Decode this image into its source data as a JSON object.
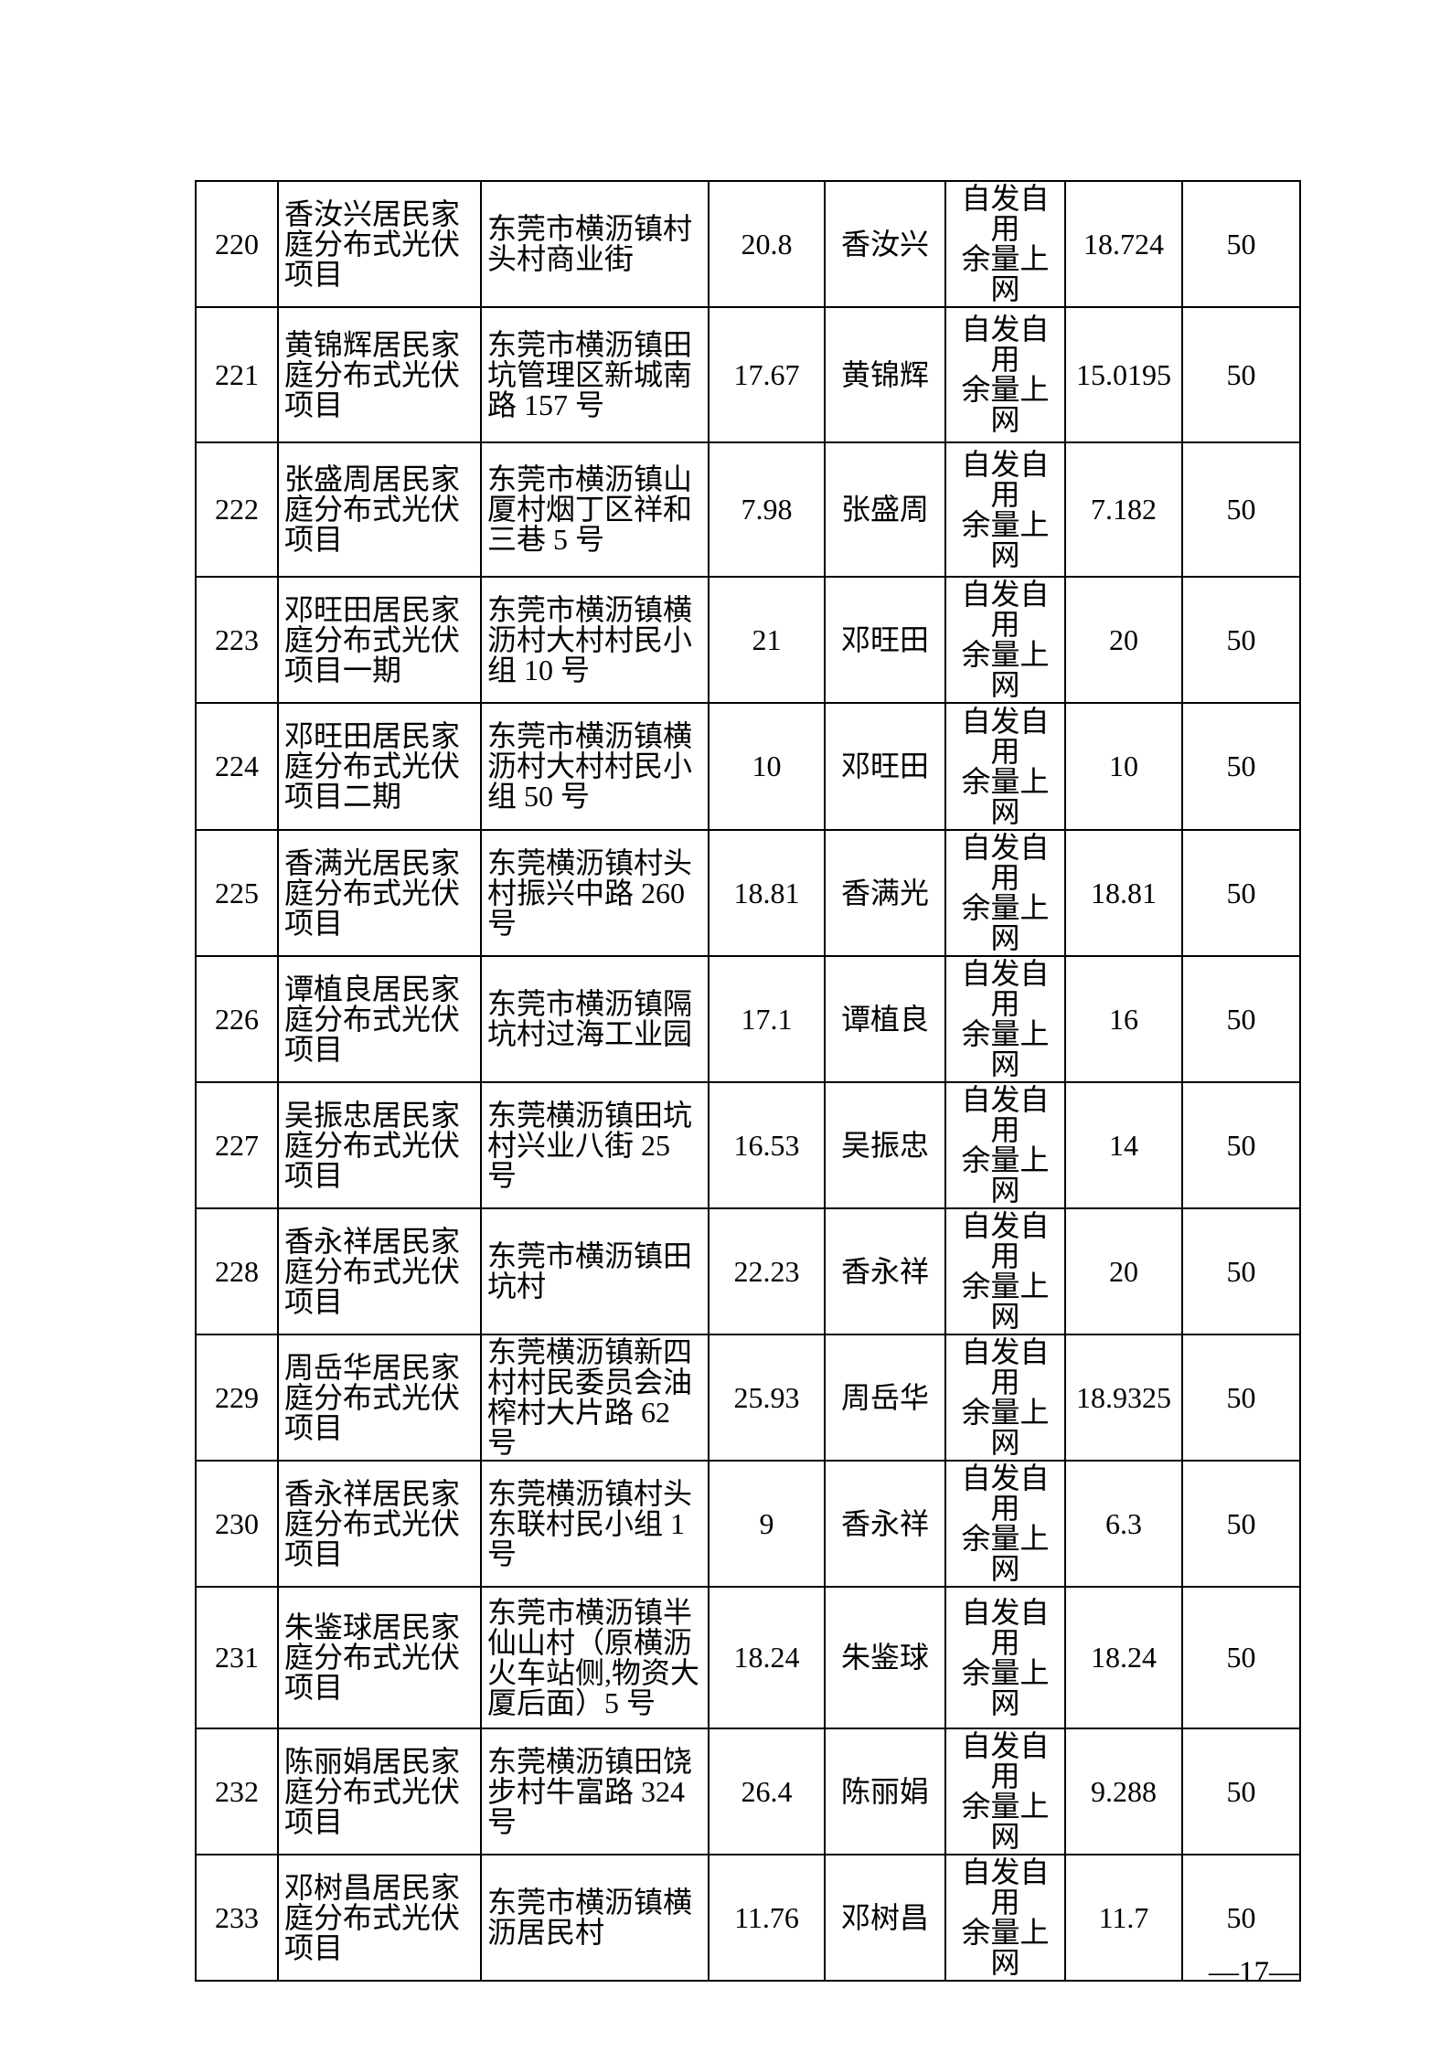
{
  "page": {
    "footer_label": "—17—"
  },
  "table": {
    "rows": [
      {
        "no": "220",
        "name": "香汝兴居民家庭分布式光伏项目",
        "address": "东莞市横沥镇村头村商业街",
        "capacity": "20.8",
        "owner": "香汝兴",
        "mode": [
          "自发自用",
          "余量上网"
        ],
        "value": "18.724",
        "quota": "50"
      },
      {
        "no": "221",
        "name": "黄锦辉居民家庭分布式光伏项目",
        "address": "东莞市横沥镇田坑管理区新城南路 157 号",
        "capacity": "17.67",
        "owner": "黄锦辉",
        "mode": [
          "自发自用",
          "余量上网"
        ],
        "value": "15.0195",
        "quota": "50"
      },
      {
        "no": "222",
        "name": "张盛周居民家庭分布式光伏项目",
        "address": "东莞市横沥镇山厦村烟丁区祥和三巷 5 号",
        "capacity": "7.98",
        "owner": "张盛周",
        "mode": [
          "自发自用",
          "余量上网"
        ],
        "value": "7.182",
        "quota": "50"
      },
      {
        "no": "223",
        "name": "邓旺田居民家庭分布式光伏项目一期",
        "address": "东莞市横沥镇横沥村大村村民小组 10 号",
        "capacity": "21",
        "owner": "邓旺田",
        "mode": [
          "自发自用",
          "余量上网"
        ],
        "value": "20",
        "quota": "50"
      },
      {
        "no": "224",
        "name": "邓旺田居民家庭分布式光伏项目二期",
        "address": "东莞市横沥镇横沥村大村村民小组 50 号",
        "capacity": "10",
        "owner": "邓旺田",
        "mode": [
          "自发自用",
          "余量上网"
        ],
        "value": "10",
        "quota": "50"
      },
      {
        "no": "225",
        "name": "香满光居民家庭分布式光伏项目",
        "address": "东莞横沥镇村头村振兴中路 260 号",
        "capacity": "18.81",
        "owner": "香满光",
        "mode": [
          "自发自用",
          "余量上网"
        ],
        "value": "18.81",
        "quota": "50"
      },
      {
        "no": "226",
        "name": "谭植良居民家庭分布式光伏项目",
        "address": "东莞市横沥镇隔坑村过海工业园",
        "capacity": "17.1",
        "owner": "谭植良",
        "mode": [
          "自发自用",
          "余量上网"
        ],
        "value": "16",
        "quota": "50"
      },
      {
        "no": "227",
        "name": "吴振忠居民家庭分布式光伏项目",
        "address": "东莞横沥镇田坑村兴业八街 25 号",
        "capacity": "16.53",
        "owner": "吴振忠",
        "mode": [
          "自发自用",
          "余量上网"
        ],
        "value": "14",
        "quota": "50"
      },
      {
        "no": "228",
        "name": "香永祥居民家庭分布式光伏项目",
        "address": "东莞市横沥镇田坑村",
        "capacity": "22.23",
        "owner": "香永祥",
        "mode": [
          "自发自用",
          "余量上网"
        ],
        "value": "20",
        "quota": "50"
      },
      {
        "no": "229",
        "name": "周岳华居民家庭分布式光伏项目",
        "address": "东莞横沥镇新四村村民委员会油榨村大片路 62 号",
        "capacity": "25.93",
        "owner": "周岳华",
        "mode": [
          "自发自用",
          "余量上网"
        ],
        "value": "18.9325",
        "quota": "50"
      },
      {
        "no": "230",
        "name": "香永祥居民家庭分布式光伏项目",
        "address": "东莞横沥镇村头东联村民小组 1 号",
        "capacity": "9",
        "owner": "香永祥",
        "mode": [
          "自发自用",
          "余量上网"
        ],
        "value": "6.3",
        "quota": "50"
      },
      {
        "no": "231",
        "name": "朱鉴球居民家庭分布式光伏项目",
        "address": "东莞市横沥镇半仙山村（原横沥火车站侧,物资大厦后面）5 号",
        "capacity": "18.24",
        "owner": "朱鉴球",
        "mode": [
          "自发自用",
          "余量上网"
        ],
        "value": "18.24",
        "quota": "50"
      },
      {
        "no": "232",
        "name": "陈丽娟居民家庭分布式光伏项目",
        "address": "东莞横沥镇田饶步村牛富路 324 号",
        "capacity": "26.4",
        "owner": "陈丽娟",
        "mode": [
          "自发自用",
          "余量上网"
        ],
        "value": "9.288",
        "quota": "50"
      },
      {
        "no": "233",
        "name": "邓树昌居民家庭分布式光伏项目",
        "address": "东莞市横沥镇横沥居民村",
        "capacity": "11.76",
        "owner": "邓树昌",
        "mode": [
          "自发自用",
          "余量上网"
        ],
        "value": "11.7",
        "quota": "50"
      }
    ]
  }
}
